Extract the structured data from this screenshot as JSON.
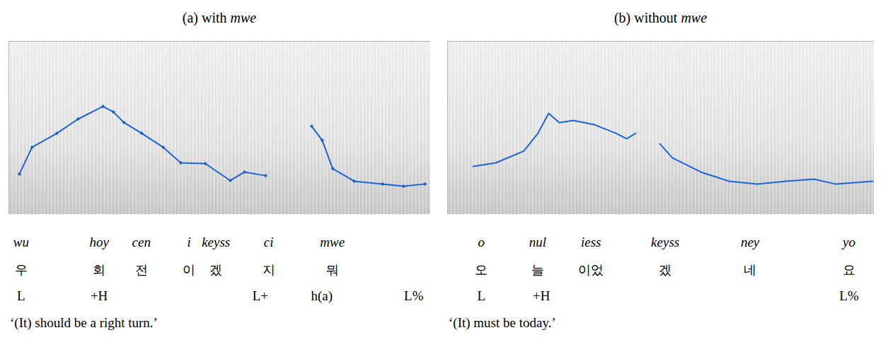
{
  "chart_data": [
    {
      "type": "line",
      "title": "(a) with mwe",
      "tick_labels": false,
      "xlim": [
        0,
        100
      ],
      "ylim": [
        0,
        100
      ],
      "x": [
        2.5,
        5.5,
        11.4,
        16.4,
        22.3,
        24.8,
        27.3,
        31.5,
        36.6,
        40.8,
        46.6,
        52.5,
        55.9,
        60.9,
        66,
        71.8,
        74.3,
        76.8,
        81.9,
        88.6,
        93.6,
        98.7
      ],
      "series": [
        {
          "color": "#1a66d9",
          "marker": "dot",
          "values": [
            23.3,
            38.8,
            46.9,
            55.1,
            62.4,
            59.2,
            53.1,
            46.9,
            38.8,
            29.8,
            29.4,
            19.6,
            24.5,
            22.4,
            null,
            51.0,
            42.9,
            26.5,
            19.2,
            17.6,
            16.3,
            17.6
          ]
        }
      ],
      "annotations": {
        "syllables": [
          {
            "x": 3.0,
            "romanization": "wu",
            "hangul": "우"
          },
          {
            "x": 21.5,
            "romanization": "hoy",
            "hangul": "회"
          },
          {
            "x": 31.5,
            "romanization": "cen",
            "hangul": "전"
          },
          {
            "x": 42.8,
            "romanization": "i",
            "hangul": "이"
          },
          {
            "x": 49.2,
            "romanization": "keyss",
            "hangul": "겠"
          },
          {
            "x": 61.7,
            "romanization": "ci",
            "hangul": "지"
          },
          {
            "x": 76.8,
            "romanization": "mwe",
            "hangul": "뭐"
          }
        ],
        "tones": [
          {
            "x": 3.0,
            "label": "L"
          },
          {
            "x": 21.5,
            "label": "+H"
          },
          {
            "x": 59.7,
            "label": "L+"
          },
          {
            "x": 74.3,
            "label": "h(a)"
          },
          {
            "x": 96.1,
            "label": "L%"
          }
        ],
        "translation": "‘(It) should be a right turn.’"
      }
    },
    {
      "type": "line",
      "title": "(b) without mwe",
      "tick_labels": false,
      "xlim": [
        0,
        100
      ],
      "ylim": [
        0,
        100
      ],
      "x": [
        6.0,
        11.3,
        17.9,
        21.2,
        23.7,
        26.2,
        29.5,
        34.5,
        39.5,
        42.0,
        44.1,
        47,
        49.8,
        52.7,
        59.4,
        66.0,
        72.6,
        79.3,
        85.9,
        90.9,
        99.7
      ],
      "series": [
        {
          "color": "#1a66d9",
          "marker": "none",
          "values": [
            27.8,
            29.8,
            36.7,
            46.9,
            58.4,
            53.1,
            54.3,
            51.8,
            46.9,
            43.7,
            46.9,
            null,
            40.8,
            32.7,
            24.5,
            19.2,
            17.6,
            19.2,
            20.4,
            17.6,
            19.2
          ]
        }
      ],
      "annotations": {
        "syllables": [
          {
            "x": 8.0,
            "romanization": "o",
            "hangul": "오"
          },
          {
            "x": 21.2,
            "romanization": "nul",
            "hangul": "늘"
          },
          {
            "x": 33.7,
            "romanization": "iess",
            "hangul": "이었"
          },
          {
            "x": 51.1,
            "romanization": "keyss",
            "hangul": "겠"
          },
          {
            "x": 71.0,
            "romanization": "ney",
            "hangul": "네"
          },
          {
            "x": 94.2,
            "romanization": "yo",
            "hangul": "요"
          }
        ],
        "tones": [
          {
            "x": 8.0,
            "label": "L"
          },
          {
            "x": 22.1,
            "label": "+H"
          },
          {
            "x": 94.2,
            "label": "L%"
          }
        ],
        "translation": "‘(It) must be today.’"
      }
    }
  ]
}
